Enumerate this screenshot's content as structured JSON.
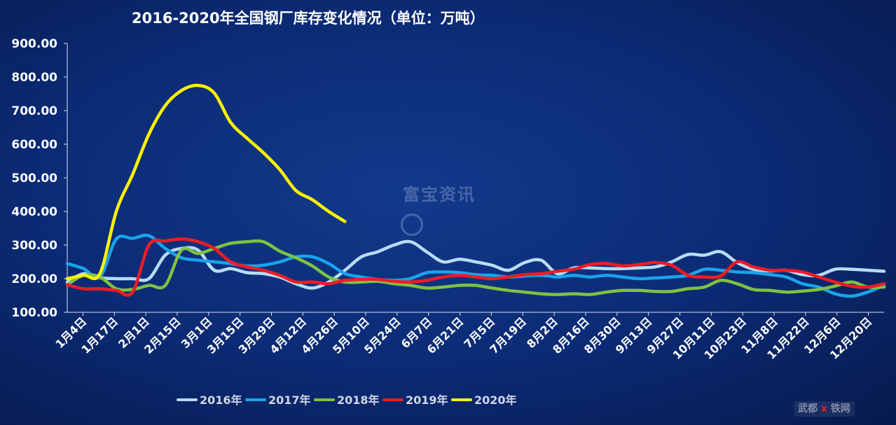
{
  "chart_data": {
    "type": "line",
    "title": "2016-2020年全国钢厂库存变化情况（单位：万吨）",
    "xlabel": "",
    "ylabel": "",
    "ylim": [
      100,
      900
    ],
    "yticks": [
      "100.00",
      "200.00",
      "300.00",
      "400.00",
      "500.00",
      "600.00",
      "700.00",
      "800.00",
      "900.00"
    ],
    "x_tick_labels": [
      "1月4日",
      "1月17日",
      "2月1日",
      "2月15日",
      "3月1日",
      "3月15日",
      "3月29日",
      "4月12日",
      "4月26日",
      "5月10日",
      "5月24日",
      "6月7日",
      "6月21日",
      "7月5日",
      "7月19日",
      "8月2日",
      "8月16日",
      "8月30日",
      "9月13日",
      "9月27日",
      "10月11日",
      "10月23日",
      "11月8日",
      "11月22日",
      "12月6日",
      "12月20日"
    ],
    "grid": false,
    "legend_position": "bottom",
    "series": [
      {
        "name": "2016年",
        "color": "#b7dcf5",
        "x": [
          0,
          2,
          4,
          6,
          8,
          10,
          12,
          14,
          16,
          18,
          20,
          22,
          24,
          26,
          28,
          30,
          32,
          34,
          36,
          38,
          40,
          42,
          44,
          46,
          48,
          50,
          52,
          54,
          56,
          58,
          60,
          62,
          64,
          66,
          68,
          70,
          72,
          74,
          76,
          78,
          80,
          82,
          84,
          86,
          88,
          90,
          92,
          94,
          96,
          98,
          100
        ],
        "values": [
          190,
          215,
          203,
          200,
          200,
          200,
          270,
          290,
          285,
          225,
          230,
          218,
          215,
          205,
          185,
          172,
          190,
          225,
          265,
          280,
          300,
          310,
          280,
          250,
          258,
          250,
          240,
          225,
          248,
          255,
          215,
          232,
          232,
          230,
          230,
          232,
          235,
          250,
          272,
          270,
          280,
          248,
          228,
          223,
          225,
          212,
          210,
          228,
          228,
          225,
          222
        ]
      },
      {
        "name": "2017年",
        "color": "#1aa3ea",
        "x": [
          0,
          2,
          4,
          6,
          8,
          10,
          12,
          14,
          16,
          18,
          20,
          22,
          24,
          26,
          28,
          30,
          32,
          34,
          36,
          38,
          40,
          42,
          44,
          46,
          48,
          50,
          52,
          54,
          56,
          58,
          60,
          62,
          64,
          66,
          68,
          70,
          72,
          74,
          76,
          78,
          80,
          82,
          84,
          86,
          88,
          90,
          92,
          94,
          96,
          98,
          100
        ],
        "values": [
          245,
          230,
          205,
          318,
          320,
          328,
          290,
          262,
          255,
          250,
          245,
          238,
          240,
          250,
          265,
          265,
          245,
          215,
          205,
          198,
          195,
          200,
          218,
          220,
          218,
          212,
          210,
          205,
          208,
          210,
          205,
          210,
          205,
          210,
          205,
          200,
          202,
          205,
          210,
          228,
          225,
          220,
          218,
          212,
          205,
          185,
          175,
          155,
          148,
          160,
          180
        ]
      },
      {
        "name": "2018年",
        "color": "#7dc242",
        "x": [
          0,
          2,
          4,
          6,
          8,
          10,
          12,
          14,
          16,
          18,
          20,
          22,
          24,
          26,
          28,
          30,
          32,
          34,
          36,
          38,
          40,
          42,
          44,
          46,
          48,
          50,
          52,
          54,
          56,
          58,
          60,
          62,
          64,
          66,
          68,
          70,
          72,
          74,
          76,
          78,
          80,
          82,
          84,
          86,
          88,
          90,
          92,
          94,
          96,
          98,
          100
        ],
        "values": [
          182,
          210,
          205,
          170,
          168,
          180,
          180,
          285,
          275,
          290,
          305,
          310,
          310,
          282,
          262,
          238,
          205,
          190,
          190,
          192,
          185,
          180,
          172,
          175,
          180,
          180,
          172,
          165,
          160,
          155,
          153,
          155,
          153,
          160,
          165,
          165,
          162,
          162,
          170,
          175,
          195,
          185,
          168,
          165,
          160,
          163,
          168,
          178,
          190,
          175,
          175
        ]
      },
      {
        "name": "2019年",
        "color": "#ee1c25",
        "x": [
          0,
          2,
          4,
          6,
          8,
          10,
          12,
          14,
          16,
          18,
          20,
          22,
          24,
          26,
          28,
          30,
          32,
          34,
          36,
          38,
          40,
          42,
          44,
          46,
          48,
          50,
          52,
          54,
          56,
          58,
          60,
          62,
          64,
          66,
          68,
          70,
          72,
          74,
          76,
          78,
          80,
          82,
          84,
          86,
          88,
          90,
          92,
          94,
          96,
          98,
          100
        ],
        "values": [
          182,
          170,
          170,
          165,
          160,
          300,
          312,
          318,
          310,
          290,
          250,
          235,
          225,
          210,
          190,
          190,
          185,
          195,
          198,
          198,
          192,
          190,
          195,
          205,
          210,
          205,
          200,
          205,
          212,
          215,
          222,
          228,
          242,
          245,
          238,
          242,
          248,
          240,
          210,
          205,
          208,
          250,
          235,
          225,
          225,
          220,
          205,
          190,
          178,
          175,
          185
        ]
      },
      {
        "name": "2020年",
        "color": "#fff200",
        "x": [
          0,
          2,
          4,
          6,
          8,
          10,
          12,
          14,
          16,
          18,
          20,
          22,
          24,
          26,
          28,
          30,
          32,
          34
        ],
        "values": [
          200,
          210,
          215,
          400,
          510,
          630,
          715,
          760,
          775,
          752,
          665,
          618,
          575,
          525,
          462,
          435,
          400,
          370
        ]
      }
    ]
  }
}
